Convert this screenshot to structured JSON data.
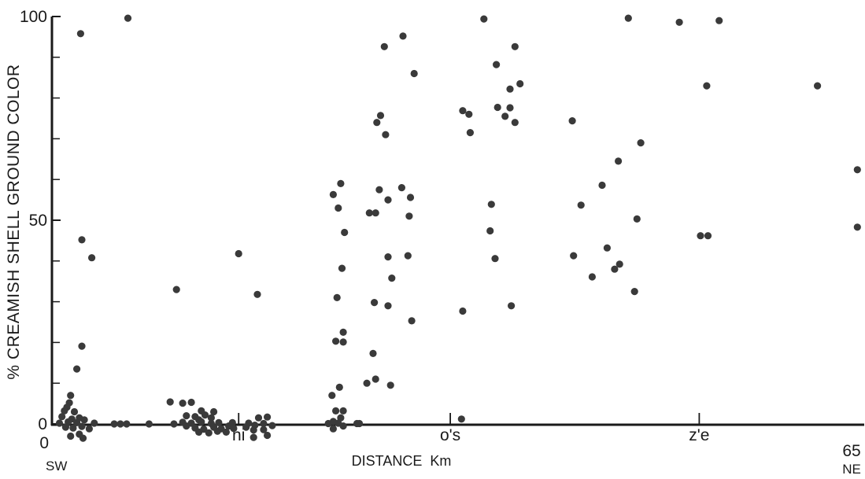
{
  "chart_data": {
    "type": "scatter",
    "title": "",
    "xlabel": "DISTANCE  Km",
    "ylabel": "% CREAMISH SHELL GROUND COLOR",
    "xlim": [
      0,
      65
    ],
    "ylim": [
      0,
      100
    ],
    "grid": false,
    "legend": "none",
    "marker_color": "#3a3a3a",
    "x_ticks": [
      {
        "value": 0,
        "label": "0"
      },
      {
        "value": 15,
        "label": "ni"
      },
      {
        "value": 32,
        "label": "o's"
      },
      {
        "value": 52,
        "label": "z'e"
      },
      {
        "value": 65,
        "label": "65"
      }
    ],
    "y_ticks": [
      {
        "value": 0,
        "label": "0"
      },
      {
        "value": 50,
        "label": "50"
      },
      {
        "value": 100,
        "label": "100"
      }
    ],
    "y_minor_ticks": [
      10,
      20,
      30,
      40,
      60,
      70,
      80,
      90
    ],
    "x_end_labels": {
      "left": "SW",
      "right": "NE"
    },
    "points": [
      [
        2.3,
        95.8
      ],
      [
        6.1,
        99.6
      ],
      [
        2.4,
        45.2
      ],
      [
        3.2,
        40.8
      ],
      [
        2.4,
        19.1
      ],
      [
        2.0,
        13.5
      ],
      [
        1.5,
        7.0
      ],
      [
        1.4,
        5.2
      ],
      [
        1.2,
        4.1
      ],
      [
        1.0,
        3.2
      ],
      [
        1.8,
        3.0
      ],
      [
        0.8,
        1.8
      ],
      [
        1.6,
        1.2
      ],
      [
        2.2,
        1.5
      ],
      [
        2.6,
        1.0
      ],
      [
        1.3,
        0.5
      ],
      [
        2.0,
        0.3
      ],
      [
        0.6,
        0.2
      ],
      [
        1.1,
        -0.8
      ],
      [
        1.7,
        -1.0
      ],
      [
        2.4,
        -0.6
      ],
      [
        3.0,
        -1.2
      ],
      [
        2.2,
        -2.5
      ],
      [
        1.5,
        -3.0
      ],
      [
        2.5,
        -3.5
      ],
      [
        3.4,
        0.2
      ],
      [
        5.0,
        0.0
      ],
      [
        5.5,
        0.0
      ],
      [
        6.0,
        0.0
      ],
      [
        7.8,
        0.0
      ],
      [
        9.8,
        0.0
      ],
      [
        10.0,
        33.0
      ],
      [
        9.5,
        5.4
      ],
      [
        10.5,
        5.1
      ],
      [
        11.2,
        5.3
      ],
      [
        10.8,
        2.0
      ],
      [
        11.5,
        1.8
      ],
      [
        12.3,
        2.2
      ],
      [
        12.8,
        1.5
      ],
      [
        11.8,
        1.0
      ],
      [
        10.5,
        0.4
      ],
      [
        11.2,
        0.2
      ],
      [
        12.0,
        0.5
      ],
      [
        12.8,
        0.1
      ],
      [
        13.4,
        0.3
      ],
      [
        10.8,
        -0.5
      ],
      [
        11.5,
        -1.0
      ],
      [
        12.2,
        -1.3
      ],
      [
        13.0,
        -0.8
      ],
      [
        13.6,
        -1.2
      ],
      [
        14.2,
        -0.5
      ],
      [
        14.6,
        -1.1
      ],
      [
        11.8,
        -2.0
      ],
      [
        12.6,
        -2.2
      ],
      [
        13.3,
        -1.8
      ],
      [
        14.0,
        -2.0
      ],
      [
        12.0,
        3.2
      ],
      [
        13.0,
        3.0
      ],
      [
        14.5,
        0.3
      ],
      [
        15.8,
        0.2
      ],
      [
        15.0,
        41.8
      ],
      [
        16.5,
        31.8
      ],
      [
        16.6,
        1.5
      ],
      [
        17.3,
        1.7
      ],
      [
        16.3,
        -0.3
      ],
      [
        17.0,
        0.1
      ],
      [
        17.7,
        -0.4
      ],
      [
        15.6,
        -0.8
      ],
      [
        16.2,
        -1.5
      ],
      [
        17.0,
        -1.4
      ],
      [
        16.2,
        -3.3
      ],
      [
        17.3,
        -2.8
      ],
      [
        22.6,
        56.3
      ],
      [
        23.2,
        59.0
      ],
      [
        23.0,
        53.0
      ],
      [
        23.5,
        47.0
      ],
      [
        23.3,
        38.2
      ],
      [
        22.9,
        31.0
      ],
      [
        23.4,
        22.5
      ],
      [
        22.8,
        20.3
      ],
      [
        23.4,
        20.1
      ],
      [
        23.1,
        9.0
      ],
      [
        22.5,
        7.0
      ],
      [
        22.8,
        3.2
      ],
      [
        23.4,
        3.2
      ],
      [
        22.6,
        0.6
      ],
      [
        23.2,
        1.5
      ],
      [
        23.0,
        0.2
      ],
      [
        22.2,
        0.1
      ],
      [
        22.6,
        -1.2
      ],
      [
        23.4,
        -0.5
      ],
      [
        24.5,
        0.1
      ],
      [
        24.7,
        0.1
      ],
      [
        26.1,
        74.0
      ],
      [
        26.4,
        75.7
      ],
      [
        26.8,
        71.0
      ],
      [
        26.7,
        92.6
      ],
      [
        28.2,
        95.2
      ],
      [
        29.1,
        86.0
      ],
      [
        26.3,
        57.5
      ],
      [
        25.5,
        51.8
      ],
      [
        26.0,
        51.8
      ],
      [
        27.0,
        55.0
      ],
      [
        28.1,
        58.0
      ],
      [
        28.8,
        55.6
      ],
      [
        28.7,
        51.0
      ],
      [
        28.6,
        41.3
      ],
      [
        27.0,
        41.0
      ],
      [
        27.3,
        35.8
      ],
      [
        25.9,
        29.8
      ],
      [
        27.0,
        29.0
      ],
      [
        28.9,
        25.3
      ],
      [
        25.8,
        17.3
      ],
      [
        26.0,
        11.0
      ],
      [
        25.3,
        10.0
      ],
      [
        27.2,
        9.5
      ],
      [
        33.0,
        76.9
      ],
      [
        33.5,
        76.0
      ],
      [
        33.6,
        71.5
      ],
      [
        35.8,
        77.7
      ],
      [
        36.4,
        75.5
      ],
      [
        36.8,
        77.6
      ],
      [
        37.2,
        74.0
      ],
      [
        35.7,
        88.2
      ],
      [
        36.8,
        82.2
      ],
      [
        37.2,
        92.6
      ],
      [
        37.6,
        83.5
      ],
      [
        34.7,
        99.4
      ],
      [
        33.0,
        27.7
      ],
      [
        32.9,
        1.2
      ],
      [
        35.3,
        53.9
      ],
      [
        35.2,
        47.4
      ],
      [
        35.6,
        40.6
      ],
      [
        36.9,
        29.0
      ],
      [
        41.8,
        74.4
      ],
      [
        42.5,
        53.7
      ],
      [
        41.9,
        41.3
      ],
      [
        43.4,
        36.1
      ],
      [
        44.2,
        58.6
      ],
      [
        45.5,
        64.5
      ],
      [
        46.3,
        99.6
      ],
      [
        47.3,
        69.0
      ],
      [
        47.0,
        50.3
      ],
      [
        44.6,
        43.2
      ],
      [
        45.2,
        38.0
      ],
      [
        45.6,
        39.2
      ],
      [
        46.8,
        32.5
      ],
      [
        50.4,
        98.6
      ],
      [
        53.6,
        99.0
      ],
      [
        52.6,
        83.0
      ],
      [
        52.1,
        46.2
      ],
      [
        52.7,
        46.2
      ],
      [
        61.5,
        83.0
      ],
      [
        64.7,
        62.4
      ],
      [
        64.7,
        48.3
      ]
    ]
  }
}
